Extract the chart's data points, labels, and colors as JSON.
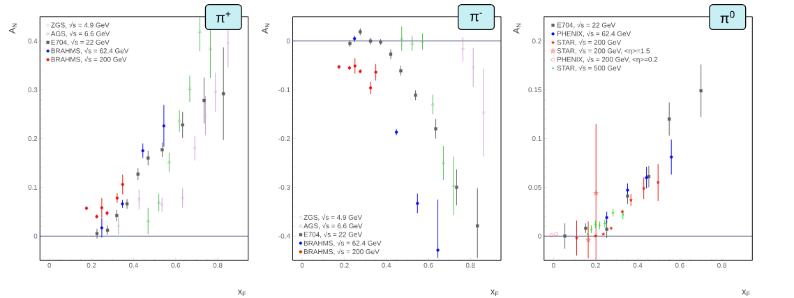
{
  "chart_data": [
    {
      "type": "scatter",
      "xlabel": "x$_{F}$",
      "ylabel": "A$_{N}$",
      "annotations": [
        "π$^{+}$"
      ],
      "xlim": [
        -0.045,
        0.945
      ],
      "ylim": [
        -0.05,
        0.45
      ],
      "xticks": [
        0,
        0.2,
        0.4,
        0.6,
        0.8
      ],
      "yticks": [
        0,
        0.1,
        0.2,
        0.3,
        0.4
      ],
      "legend": "top left",
      "ref_lines": [
        {
          "axis": "y",
          "value": 0,
          "color": "#2a2a6a"
        }
      ],
      "series": [
        {
          "name": "ZGS, √s = 4.9 GeV",
          "color": "#c8a0d0",
          "marker": "triangle_down_open",
          "x": [
            0.328,
            0.426,
            0.535,
            0.633,
            0.691,
            0.742,
            0.789,
            0.849
          ],
          "values": [
            0.02,
            0.075,
            0.064,
            0.078,
            0.18,
            0.247,
            0.295,
            0.396
          ],
          "errors": [
            0.018,
            0.02,
            0.015,
            0.02,
            0.025,
            0.04,
            0.04,
            0.05
          ]
        },
        {
          "name": "AGS, √s = 6.6 GeV",
          "color": "#55bb55",
          "marker": "triangle_open",
          "x": [
            0.469,
            0.52,
            0.569,
            0.618,
            0.667,
            0.715,
            0.765
          ],
          "values": [
            0.031,
            0.069,
            0.151,
            0.236,
            0.302,
            0.419,
            0.384
          ],
          "errors": [
            0.027,
            0.018,
            0.02,
            0.022,
            0.027,
            0.04,
            0.06
          ]
        },
        {
          "name": "E704, √s = 22 GeV",
          "color": "#606060",
          "marker": "square",
          "x": [
            0.226,
            0.276,
            0.32,
            0.369,
            0.421,
            0.469,
            0.536,
            0.633,
            0.735,
            0.827
          ],
          "values": [
            0.005,
            0.012,
            0.042,
            0.066,
            0.127,
            0.16,
            0.177,
            0.228,
            0.278,
            0.292
          ],
          "errors": [
            0.01,
            0.01,
            0.012,
            0.01,
            0.012,
            0.015,
            0.015,
            0.027,
            0.047,
            0.095
          ]
        },
        {
          "name": "BRAHMS, √s = 62.4 GeV",
          "color": "#0a0aee",
          "marker": "circle",
          "x": [
            0.249,
            0.347,
            0.444,
            0.544
          ],
          "values": [
            0.017,
            0.066,
            0.175,
            0.226
          ],
          "errors": [
            0.02,
            0.008,
            0.015,
            0.043
          ]
        },
        {
          "name": "BRAHMS, √s = 200 GeV",
          "color": "#ee1111",
          "marker": "circle",
          "x": [
            0.176,
            0.225,
            0.249,
            0.274,
            0.322,
            0.348
          ],
          "values": [
            0.057,
            0.04,
            0.058,
            0.047,
            0.078,
            0.106
          ],
          "errors": [
            0.004,
            0.004,
            0.02,
            0.005,
            0.01,
            0.02
          ]
        }
      ]
    },
    {
      "type": "scatter",
      "xlabel": "x$_{F}$",
      "ylabel": "A$_{N}$",
      "annotations": [
        "π$^{-}$"
      ],
      "xlim": [
        -0.045,
        0.945
      ],
      "ylim": [
        -0.45,
        0.05
      ],
      "xticks": [
        0,
        0.2,
        0.4,
        0.6,
        0.8
      ],
      "yticks": [
        -0.4,
        -0.3,
        -0.2,
        -0.1,
        0
      ],
      "legend": "bottom left",
      "ref_lines": [
        {
          "axis": "y",
          "value": 0,
          "color": "#2a2a6a"
        }
      ],
      "series": [
        {
          "name": "ZGS, √s = 4.9 GeV",
          "color": "#c8a0d0",
          "marker": "triangle_down_open",
          "x": [
            0.764,
            0.813,
            0.862
          ],
          "values": [
            -0.017,
            -0.054,
            -0.147
          ],
          "errors": [
            0.025,
            0.04,
            0.09
          ]
        },
        {
          "name": "AGS, √s = 6.6 GeV",
          "color": "#55bb55",
          "marker": "triangle_open",
          "x": [
            0.473,
            0.523,
            0.572,
            0.621,
            0.671,
            0.72
          ],
          "values": [
            0.005,
            -0.005,
            -0.001,
            -0.13,
            -0.25,
            -0.297
          ],
          "errors": [
            0.025,
            0.015,
            0.017,
            0.02,
            0.035,
            0.06
          ]
        },
        {
          "name": "E704, √s = 22 GeV",
          "color": "#606060",
          "marker": "square",
          "x": [
            0.227,
            0.276,
            0.325,
            0.373,
            0.421,
            0.469,
            0.539,
            0.635,
            0.734,
            0.833
          ],
          "values": [
            -0.005,
            0.019,
            0,
            -0.002,
            -0.027,
            -0.061,
            -0.111,
            -0.18,
            -0.3,
            -0.379
          ],
          "errors": [
            0.007,
            0.007,
            0.007,
            0.006,
            0.01,
            0.01,
            0.01,
            0.02,
            0.037,
            [
              -0.445,
              -0.302
            ]
          ]
        },
        {
          "name": "BRAHMS, √s = 62.4 GeV",
          "color": "#0a0aee",
          "marker": "circle",
          "x": [
            0.249,
            0.448,
            0.548,
            0.645
          ],
          "values": [
            0.005,
            -0.187,
            -0.333,
            -0.429
          ],
          "errors": [
            0.006,
            0.006,
            0.02,
            [
              -0.445,
              -0.325
            ]
          ]
        },
        {
          "name": "BRAHMS, √s = 200 GeV",
          "color": "#ee1111",
          "marker": "circle",
          "x": [
            0.175,
            0.225,
            0.251,
            0.276,
            0.325,
            0.35
          ],
          "values": [
            -0.053,
            -0.055,
            -0.051,
            -0.062,
            -0.096,
            -0.064
          ],
          "errors": [
            0.004,
            0.004,
            0.016,
            0.004,
            0.013,
            0.017
          ]
        }
      ]
    },
    {
      "type": "scatter",
      "xlabel": "x$_{F}$",
      "ylabel": "A$_{N}$",
      "annotations": [
        "π$^{0}$"
      ],
      "xlim": [
        -0.045,
        0.945
      ],
      "ylim": [
        -0.025,
        0.225
      ],
      "xticks": [
        0,
        0.2,
        0.4,
        0.6,
        0.8
      ],
      "yticks": [
        0,
        0.05,
        0.1,
        0.15,
        0.2
      ],
      "legend": "top left",
      "ref_lines": [
        {
          "axis": "y",
          "value": 0,
          "color": "#2a2a6a"
        }
      ],
      "series": [
        {
          "name": "E704, √s = 22 GeV",
          "color": "#606060",
          "marker": "square",
          "x": [
            0.054,
            0.153,
            0.253,
            0.352,
            0.453,
            0.55,
            0.701
          ],
          "values": [
            0,
            0.008,
            0.007,
            0.041,
            0.061,
            0.12,
            0.149
          ],
          "errors": [
            0.013,
            0.005,
            0.009,
            0.008,
            0.011,
            0.017,
            0.027
          ]
        },
        {
          "name": "PHENIX, √s = 62.4 GeV",
          "color": "#0a0aee",
          "marker": "circle",
          "x": [
            0.253,
            0.352,
            0.442,
            0.56
          ],
          "values": [
            0.019,
            0.047,
            0.06,
            0.081
          ],
          "errors": [
            0.006,
            0.007,
            0.011,
            0.018
          ]
        },
        {
          "name": "STAR, √s = 200 GeV",
          "color": "#ee1111",
          "marker": "star",
          "x": [
            0.11,
            0.2,
            0.237,
            0.274,
            0.327,
            0.368,
            0.429,
            0.497
          ],
          "values": [
            -0.002,
            0,
            0.002,
            0.008,
            0.025,
            0.037,
            0.049,
            0.055
          ],
          "errors": [
            0.018,
            null,
            null,
            null,
            null,
            0.006,
            0.011,
            0.019
          ]
        },
        {
          "name": "STAR, √s = 200 GeV, <η>=1.5",
          "color": "#ee2222",
          "marker": "star_open",
          "x": [
            0.165,
            0.202
          ],
          "values": [
            -0.004,
            0.044
          ],
          "errors": [
            0.019,
            [
              -0.024,
              0.115
            ]
          ]
        },
        {
          "name": "PHENIX, √s = 200 GeV, <η>=0.2",
          "color": "#ee2222",
          "marker": "circle_open",
          "x": [
            -0.009,
            0.013
          ],
          "values": [
            0.001,
            0.002
          ]
        },
        {
          "name": "STAR, √s = 500 GeV",
          "color": "#22dd22",
          "marker": "triangle",
          "x": [
            0.162,
            0.18,
            0.2,
            0.219,
            0.244,
            0.283,
            0.33
          ],
          "values": [
            0.002,
            0.007,
            0.012,
            0.011,
            0.013,
            0.024,
            0.022
          ],
          "errors": [
            null,
            0.004,
            0.004,
            0.004,
            0.004,
            0.004,
            0.005
          ]
        }
      ]
    }
  ]
}
